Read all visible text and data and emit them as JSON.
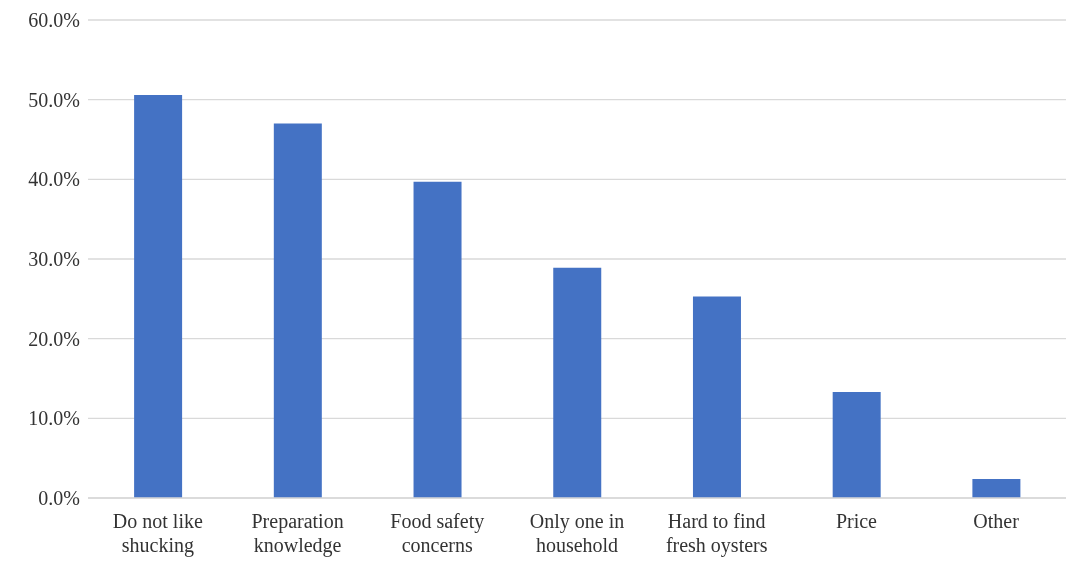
{
  "chart_data": {
    "type": "bar",
    "categories": [
      "Do not like shucking",
      "Preparation knowledge",
      "Food safety concerns",
      "Only one in household",
      "Hard to find fresh oysters",
      "Price",
      "Other"
    ],
    "values": [
      50.6,
      47.0,
      39.7,
      28.9,
      25.3,
      13.3,
      2.4
    ],
    "color": "#4472c4",
    "ylim": [
      0,
      60
    ],
    "yticks": [
      {
        "value": 0,
        "label": "0.0%"
      },
      {
        "value": 10,
        "label": "10.0%"
      },
      {
        "value": 20,
        "label": "20.0%"
      },
      {
        "value": 30,
        "label": "30.0%"
      },
      {
        "value": 40,
        "label": "40.0%"
      },
      {
        "value": 50,
        "label": "50.0%"
      },
      {
        "value": 60,
        "label": "60.0%"
      }
    ],
    "grid": "y"
  }
}
